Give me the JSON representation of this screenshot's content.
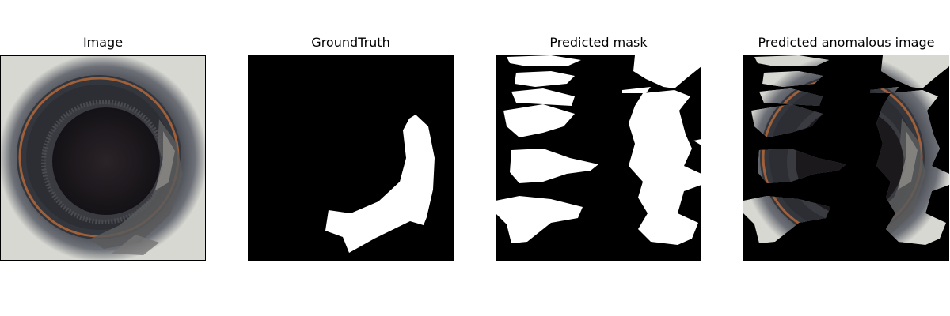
{
  "panels": [
    {
      "title": "Image"
    },
    {
      "title": "GroundTruth"
    },
    {
      "title": "Predicted mask"
    },
    {
      "title": "Predicted anomalous image"
    }
  ],
  "colors": {
    "background": "#ffffff",
    "mask_bg": "#000000",
    "mask_fg": "#ffffff",
    "bottle_rim": "#3a3d44",
    "bottle_inner": "#1e1b1f",
    "orange_ring": "#a0603a",
    "glass_bg": "#d7d8d2"
  }
}
